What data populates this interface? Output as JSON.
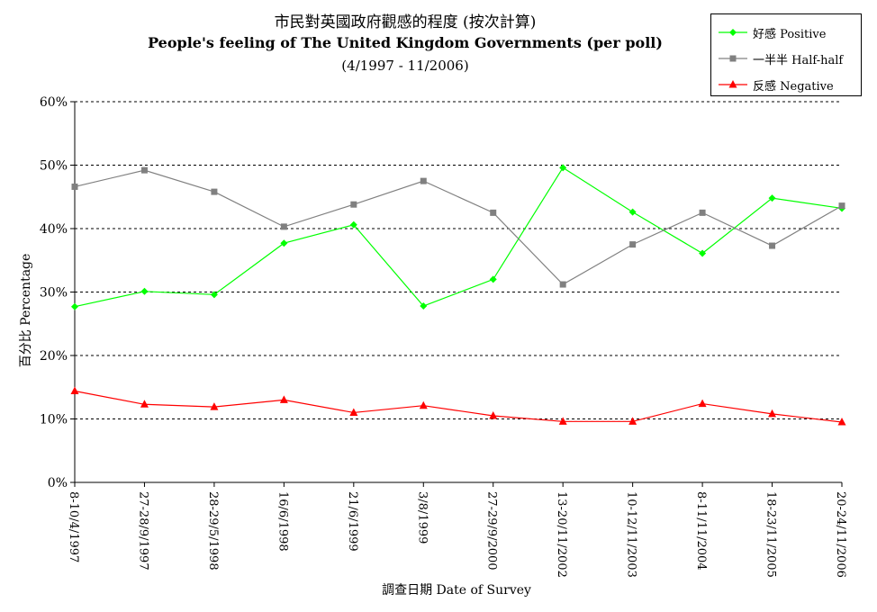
{
  "chart_data": {
    "type": "line",
    "title": "市民對英國政府觀感的程度 (按次計算)",
    "title_en": "People's feeling of The United Kingdom Governments (per poll)",
    "subtitle": "(4/1997 - 11/2006)",
    "xlabel": "調查日期 Date of Survey",
    "ylabel": "百分比 Percentage",
    "ylim": [
      0,
      60
    ],
    "yticks": [
      "0%",
      "10%",
      "20%",
      "30%",
      "40%",
      "50%",
      "60%"
    ],
    "grid": true,
    "legend_position": "top-right",
    "categories": [
      "8-10/4/1997",
      "27-28/9/1997",
      "28-29/5/1998",
      "16/6/1998",
      "21/6/1999",
      "3/8/1999",
      "27-29/9/2000",
      "13-20/11/2002",
      "10-12/11/2003",
      "8-11/11/2004",
      "18-23/11/2005",
      "20-24/11/2006"
    ],
    "series": [
      {
        "name": "好感 Positive",
        "color": "#00ff00",
        "marker": "diamond",
        "values": [
          27.7,
          30.1,
          29.6,
          37.7,
          40.6,
          27.8,
          32.0,
          49.6,
          42.6,
          36.1,
          44.8,
          43.2
        ]
      },
      {
        "name": "一半半 Half-half",
        "color": "#808080",
        "marker": "square",
        "values": [
          46.6,
          49.2,
          45.8,
          40.3,
          43.8,
          47.5,
          42.5,
          31.2,
          37.5,
          42.5,
          37.3,
          43.6
        ]
      },
      {
        "name": "反感 Negative",
        "color": "#ff0000",
        "marker": "triangle",
        "values": [
          14.4,
          12.3,
          11.9,
          13.0,
          11.0,
          12.1,
          10.5,
          9.6,
          9.6,
          12.4,
          10.8,
          9.5
        ]
      }
    ]
  }
}
